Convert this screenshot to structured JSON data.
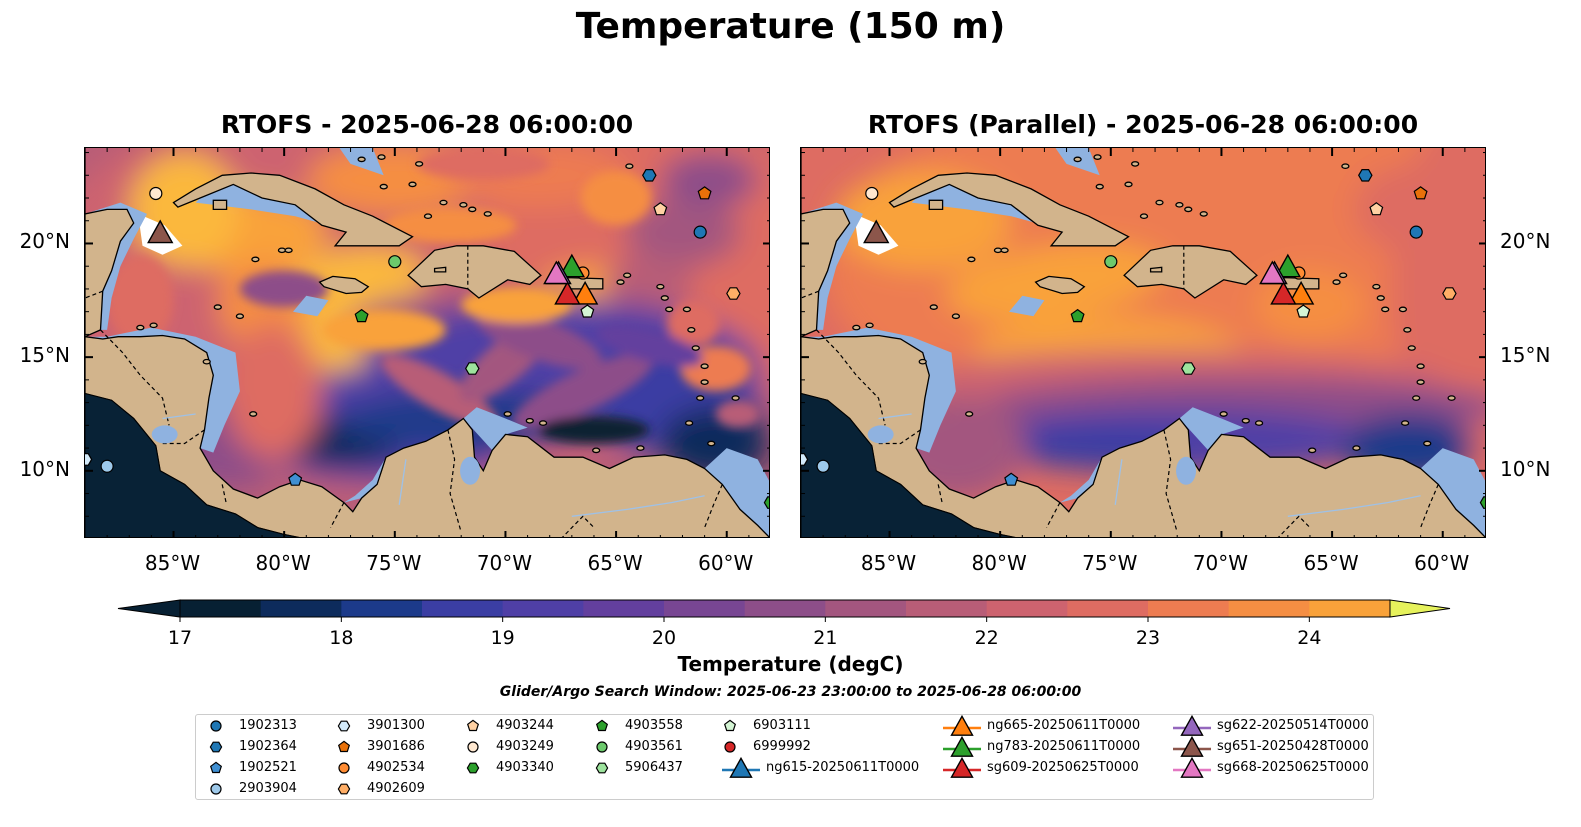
{
  "figure": {
    "suptitle": "Temperature (150 m)",
    "search_window": "Glider/Argo Search Window: 2025-06-23 23:00:00 to 2025-06-28 06:00:00"
  },
  "panels": [
    {
      "title": "RTOFS - 2025-06-28 06:00:00",
      "lat_labels_side": "left"
    },
    {
      "title": "RTOFS (Parallel) - 2025-06-28 06:00:00",
      "lat_labels_side": "right"
    }
  ],
  "map_extent": {
    "lon_min": -89,
    "lon_max": -58,
    "lat_min": 7,
    "lat_max": 24.2
  },
  "lon_ticks": [
    -85,
    -80,
    -75,
    -70,
    -65,
    -60
  ],
  "lon_tick_labels": [
    "85°W",
    "80°W",
    "75°W",
    "70°W",
    "65°W",
    "60°W"
  ],
  "lat_ticks": [
    20,
    15,
    10
  ],
  "lat_tick_labels": [
    "20°N",
    "15°N",
    "10°N"
  ],
  "colorbar": {
    "label": "Temperature (degC)",
    "min": 17,
    "max": 24.5,
    "step": 0.5,
    "ticks": [
      17,
      18,
      19,
      20,
      21,
      22,
      23,
      24
    ],
    "tick_labels": [
      "17",
      "18",
      "19",
      "20",
      "21",
      "22",
      "23",
      "24"
    ],
    "extend": "both",
    "colormap": "thermal",
    "colors": [
      "#072033",
      "#0d2b5c",
      "#1c3a8a",
      "#3b3ea3",
      "#4f3fa6",
      "#633f9e",
      "#784693",
      "#8d4e89",
      "#a3567f",
      "#b85d77",
      "#cd636f",
      "#de6c62",
      "#ed7c51",
      "#f58e43",
      "#f9a23a",
      "#fbb83c",
      "#f5d148",
      "#e6f25c"
    ],
    "land_color": "#d2b48c",
    "shelf_color": "#8fb2e0"
  },
  "floats": [
    {
      "id": "1902313",
      "shape": "circle",
      "color": "#1f77b4",
      "lon": -61.2,
      "lat": 20.5
    },
    {
      "id": "1902364",
      "shape": "hexagon",
      "color": "#1f77b4",
      "lon": -63.5,
      "lat": 23.0
    },
    {
      "id": "1902521",
      "shape": "pentagon",
      "color": "#3f8fd2",
      "lon": -79.5,
      "lat": 9.6
    },
    {
      "id": "2903904",
      "shape": "circle",
      "color": "#9ec9ea",
      "lon": -88.0,
      "lat": 10.2
    },
    {
      "id": "3901300",
      "shape": "hexagon",
      "color": "#d4ebfb",
      "lon": -89.0,
      "lat": 10.5
    },
    {
      "id": "3901686",
      "shape": "pentagon",
      "color": "#e8710a",
      "lon": -61.0,
      "lat": 22.2
    },
    {
      "id": "4902534",
      "shape": "circle",
      "color": "#ff8c33",
      "lon": -66.5,
      "lat": 18.7
    },
    {
      "id": "4902609",
      "shape": "hexagon",
      "color": "#ffae66",
      "lon": -59.7,
      "lat": 17.8
    },
    {
      "id": "4903244",
      "shape": "pentagon",
      "color": "#ffd1a3",
      "lon": -63.0,
      "lat": 21.5
    },
    {
      "id": "4903249",
      "shape": "circle",
      "color": "#ffe8d0",
      "lon": -85.8,
      "lat": 22.2
    },
    {
      "id": "4903340",
      "shape": "hexagon",
      "color": "#2ca02c",
      "lon": -58.0,
      "lat": 8.6
    },
    {
      "id": "4903558",
      "shape": "pentagon",
      "color": "#2ca02c",
      "lon": -76.5,
      "lat": 16.8
    },
    {
      "id": "4903561",
      "shape": "circle",
      "color": "#6cc96c",
      "lon": -75.0,
      "lat": 19.2
    },
    {
      "id": "5906437",
      "shape": "hexagon",
      "color": "#9de39d",
      "lon": -71.5,
      "lat": 14.5
    },
    {
      "id": "6903111",
      "shape": "pentagon",
      "color": "#d4f5d4",
      "lon": -66.3,
      "lat": 17.0
    },
    {
      "id": "6999992",
      "shape": "circle",
      "color": "#d62728",
      "lon": null,
      "lat": null
    }
  ],
  "gliders": [
    {
      "id": "ng615-20250611T0000",
      "color": "#1f77b4",
      "lon": null,
      "lat": null
    },
    {
      "id": "ng665-20250611T0000",
      "color": "#ff7f0e",
      "lon": -66.4,
      "lat": 17.7
    },
    {
      "id": "ng783-20250611T0000",
      "color": "#2ca02c",
      "lon": -67.0,
      "lat": 18.9
    },
    {
      "id": "sg609-20250625T0000",
      "color": "#d62728",
      "lon": -67.2,
      "lat": 17.7
    },
    {
      "id": "sg622-20250514T0000",
      "color": "#9467bd",
      "lon": -67.6,
      "lat": 18.6
    },
    {
      "id": "sg651-20250428T0000",
      "color": "#8c564b",
      "lon": -85.6,
      "lat": 20.4
    },
    {
      "id": "sg668-20250625T0000",
      "color": "#e377c2",
      "lon": -67.7,
      "lat": 18.6
    }
  ]
}
